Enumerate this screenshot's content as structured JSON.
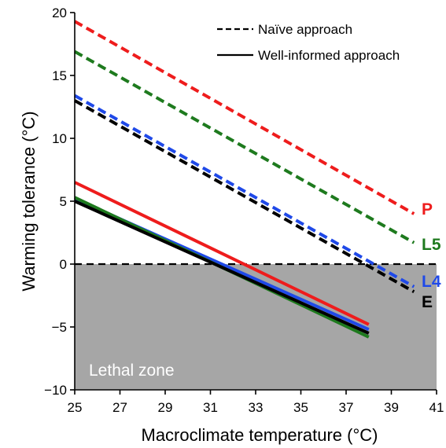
{
  "chart_data": {
    "type": "line",
    "xlabel": "Macroclimate temperature (°C)",
    "ylabel": "Warming tolerance (°C)",
    "xlim": [
      25,
      41
    ],
    "ylim": [
      -10,
      20
    ],
    "xticks": [
      25,
      27,
      29,
      31,
      33,
      35,
      37,
      39,
      41
    ],
    "yticks": [
      -10,
      -5,
      0,
      5,
      10,
      15,
      20
    ],
    "grid": false,
    "legend": {
      "placement": "top-right",
      "entries": [
        {
          "label": "Naïve approach",
          "style": "dashed",
          "color": "#000000"
        },
        {
          "label": "Well-informed approach",
          "style": "solid",
          "color": "#000000"
        }
      ]
    },
    "zone": {
      "label": "Lethal zone",
      "y_from": -10,
      "y_to": 0,
      "color": "#a6a6a6"
    },
    "reference_line": {
      "y": 0,
      "style": "dashed",
      "color": "#000000"
    },
    "series": [
      {
        "name": "P",
        "color": "#ee1c1c",
        "approach": "naive",
        "x": [
          25,
          40
        ],
        "y": [
          19.3,
          4.0
        ]
      },
      {
        "name": "L5",
        "color": "#1e7a1e",
        "approach": "naive",
        "x": [
          25,
          40
        ],
        "y": [
          16.9,
          1.7
        ]
      },
      {
        "name": "L4",
        "color": "#1f49e8",
        "approach": "naive",
        "x": [
          25,
          40
        ],
        "y": [
          13.4,
          -1.8
        ]
      },
      {
        "name": "E",
        "color": "#000000",
        "approach": "naive",
        "x": [
          25,
          40
        ],
        "y": [
          13.0,
          -2.2
        ]
      },
      {
        "name": "P",
        "color": "#ee1c1c",
        "approach": "well-informed",
        "x": [
          25,
          38
        ],
        "y": [
          6.5,
          -4.8
        ]
      },
      {
        "name": "L5",
        "color": "#1e7a1e",
        "approach": "well-informed",
        "x": [
          25,
          38
        ],
        "y": [
          5.3,
          -5.8
        ]
      },
      {
        "name": "L4",
        "color": "#1f49e8",
        "approach": "well-informed",
        "x": [
          25,
          38
        ],
        "y": [
          5.2,
          -5.2
        ]
      },
      {
        "name": "E",
        "color": "#000000",
        "approach": "well-informed",
        "x": [
          25,
          38
        ],
        "y": [
          5.0,
          -5.5
        ]
      }
    ],
    "end_labels": [
      {
        "text": "P",
        "color": "#ee1c1c"
      },
      {
        "text": "L5",
        "color": "#1e7a1e"
      },
      {
        "text": "L4",
        "color": "#1f49e8"
      },
      {
        "text": "E",
        "color": "#000000"
      }
    ]
  }
}
